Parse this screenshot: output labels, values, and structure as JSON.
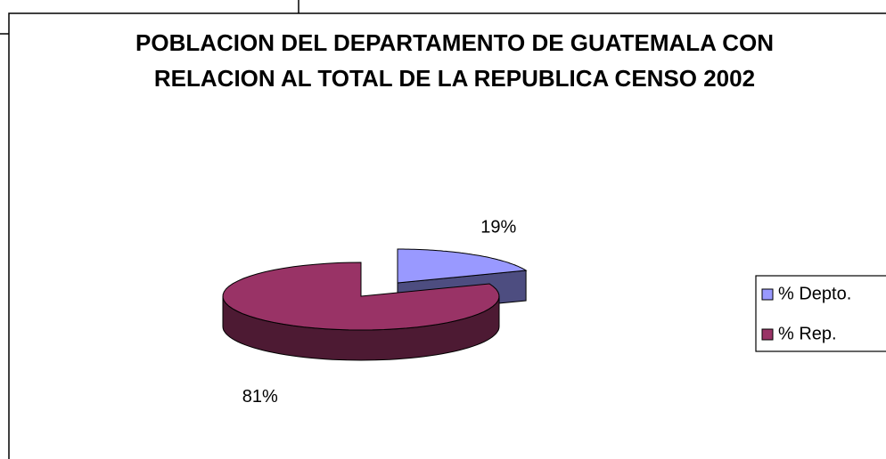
{
  "chart_data": {
    "type": "pie3d",
    "title": "POBLACION DEL DEPARTAMENTO DE GUATEMALA CON RELACION AL TOTAL DE LA REPUBLICA CENSO 2002",
    "categories": [
      "% Depto.",
      "% Rep."
    ],
    "values": [
      19,
      81
    ],
    "value_labels": [
      "19%",
      "81%"
    ],
    "colors": [
      "#9999ff",
      "#993366"
    ],
    "legend": "right"
  }
}
